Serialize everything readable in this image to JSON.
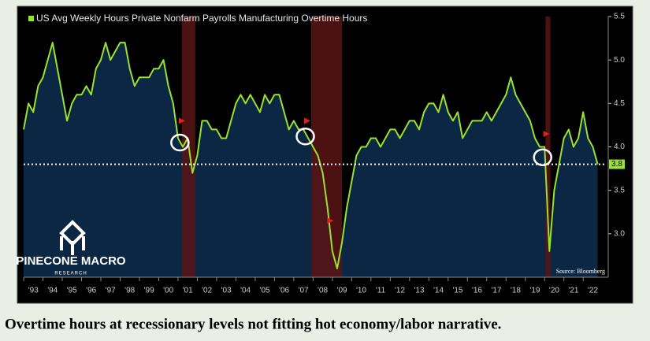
{
  "chart_data": {
    "type": "line",
    "title": "US Avg Weekly Hours Private Nonfarm Payrolls Manufacturing Overtime Hours",
    "x": [
      1993,
      1993.25,
      1993.5,
      1993.75,
      1994,
      1994.25,
      1994.5,
      1994.75,
      1995,
      1995.25,
      1995.5,
      1995.75,
      1996,
      1996.25,
      1996.5,
      1996.75,
      1997,
      1997.25,
      1997.5,
      1997.75,
      1998,
      1998.25,
      1998.5,
      1998.75,
      1999,
      1999.25,
      1999.5,
      1999.75,
      2000,
      2000.25,
      2000.5,
      2000.75,
      2001,
      2001.25,
      2001.5,
      2001.75,
      2002,
      2002.25,
      2002.5,
      2002.75,
      2003,
      2003.25,
      2003.5,
      2003.75,
      2004,
      2004.25,
      2004.5,
      2004.75,
      2005,
      2005.25,
      2005.5,
      2005.75,
      2006,
      2006.25,
      2006.5,
      2006.75,
      2007,
      2007.25,
      2007.5,
      2007.75,
      2008,
      2008.25,
      2008.5,
      2008.75,
      2009,
      2009.25,
      2009.5,
      2009.75,
      2010,
      2010.25,
      2010.5,
      2010.75,
      2011,
      2011.25,
      2011.5,
      2011.75,
      2012,
      2012.25,
      2012.5,
      2012.75,
      2013,
      2013.25,
      2013.5,
      2013.75,
      2014,
      2014.25,
      2014.5,
      2014.75,
      2015,
      2015.25,
      2015.5,
      2015.75,
      2016,
      2016.25,
      2016.5,
      2016.75,
      2017,
      2017.25,
      2017.5,
      2017.75,
      2018,
      2018.25,
      2018.5,
      2018.75,
      2019,
      2019.25,
      2019.5,
      2019.75,
      2020,
      2020.25,
      2020.5,
      2020.75,
      2021,
      2021.25,
      2021.5,
      2021.75,
      2022,
      2022.25,
      2022.5,
      2022.75
    ],
    "series": [
      {
        "name": "US Avg Weekly Hours Private Nonfarm Payrolls Manufacturing Overtime Hours",
        "color": "#9be22d",
        "values": [
          4.2,
          4.5,
          4.4,
          4.7,
          4.8,
          5.0,
          5.2,
          4.9,
          4.6,
          4.3,
          4.5,
          4.6,
          4.6,
          4.7,
          4.6,
          4.9,
          5.0,
          5.2,
          5.0,
          5.1,
          5.2,
          5.2,
          4.9,
          4.7,
          4.8,
          4.8,
          4.8,
          4.9,
          4.9,
          5.0,
          4.7,
          4.5,
          4.1,
          4.0,
          4.1,
          3.7,
          3.9,
          4.3,
          4.3,
          4.2,
          4.2,
          4.1,
          4.1,
          4.3,
          4.5,
          4.6,
          4.5,
          4.6,
          4.5,
          4.4,
          4.6,
          4.5,
          4.6,
          4.6,
          4.4,
          4.2,
          4.3,
          4.2,
          4.2,
          4.1,
          4.0,
          3.9,
          3.7,
          3.3,
          2.8,
          2.6,
          2.9,
          3.3,
          3.6,
          3.9,
          4.0,
          4.0,
          4.1,
          4.1,
          4.0,
          4.1,
          4.2,
          4.2,
          4.1,
          4.2,
          4.3,
          4.3,
          4.2,
          4.4,
          4.5,
          4.5,
          4.4,
          4.6,
          4.4,
          4.3,
          4.4,
          4.1,
          4.2,
          4.3,
          4.3,
          4.3,
          4.4,
          4.3,
          4.4,
          4.5,
          4.6,
          4.8,
          4.6,
          4.5,
          4.4,
          4.3,
          4.1,
          4.0,
          4.0,
          2.8,
          3.5,
          3.8,
          4.1,
          4.2,
          4.0,
          4.1,
          4.4,
          4.1,
          4.0,
          3.8
        ]
      }
    ],
    "xlim": [
      1993,
      2023.3
    ],
    "xticks": [
      {
        "value": 1993.5,
        "label": "'93"
      },
      {
        "value": 1994.5,
        "label": "'94"
      },
      {
        "value": 1995.5,
        "label": "'95"
      },
      {
        "value": 1996.5,
        "label": "'96"
      },
      {
        "value": 1997.5,
        "label": "'97"
      },
      {
        "value": 1998.5,
        "label": "'98"
      },
      {
        "value": 1999.5,
        "label": "'99"
      },
      {
        "value": 2000.5,
        "label": "'00"
      },
      {
        "value": 2001.5,
        "label": "'01"
      },
      {
        "value": 2002.5,
        "label": "'02"
      },
      {
        "value": 2003.5,
        "label": "'03"
      },
      {
        "value": 2004.5,
        "label": "'04"
      },
      {
        "value": 2005.5,
        "label": "'05"
      },
      {
        "value": 2006.5,
        "label": "'06"
      },
      {
        "value": 2007.5,
        "label": "'07"
      },
      {
        "value": 2008.5,
        "label": "'08"
      },
      {
        "value": 2009.5,
        "label": "'09"
      },
      {
        "value": 2010.5,
        "label": "'10"
      },
      {
        "value": 2011.5,
        "label": "'11"
      },
      {
        "value": 2012.5,
        "label": "'12"
      },
      {
        "value": 2013.5,
        "label": "'13"
      },
      {
        "value": 2014.5,
        "label": "'14"
      },
      {
        "value": 2015.5,
        "label": "'15"
      },
      {
        "value": 2016.5,
        "label": "'16"
      },
      {
        "value": 2017.5,
        "label": "'17"
      },
      {
        "value": 2018.5,
        "label": "'18"
      },
      {
        "value": 2019.5,
        "label": "'19"
      },
      {
        "value": 2020.5,
        "label": "'20"
      },
      {
        "value": 2021.5,
        "label": "'21"
      },
      {
        "value": 2022.5,
        "label": "'22"
      }
    ],
    "ylim": [
      2.5,
      5.5
    ],
    "yticks": [
      {
        "value": 3,
        "label": "3.0"
      },
      3.5,
      {
        "value": 4,
        "label": "4.0"
      },
      4.5,
      {
        "value": 5,
        "label": "5.0"
      },
      5.5
    ],
    "grid": false,
    "area_color": "#0c2744",
    "shaded_regions": [
      [
        2001.2,
        2001.9
      ],
      [
        2007.9,
        2009.5
      ],
      [
        2020.05,
        2020.3
      ]
    ],
    "shade_color": "#5a1414",
    "reference_line": {
      "value": 3.8
    },
    "highlight_points": [
      {
        "x": 2001.1,
        "y": 4.05
      },
      {
        "x": 2007.6,
        "y": 4.12
      },
      {
        "x": 2019.9,
        "y": 3.88
      }
    ],
    "flag_points": [
      {
        "x": 2001.2,
        "y": 4.3
      },
      {
        "x": 2007.7,
        "y": 4.3
      },
      {
        "x": 2008.9,
        "y": 3.15
      },
      {
        "x": 2020.1,
        "y": 4.15
      }
    ],
    "logo_text": "PINECONE MACRO",
    "logo_subtext": "RESEARCH",
    "source": "Source: Bloomberg"
  },
  "caption": "Overtime hours at recessionary levels not fitting hot economy/labor narrative."
}
